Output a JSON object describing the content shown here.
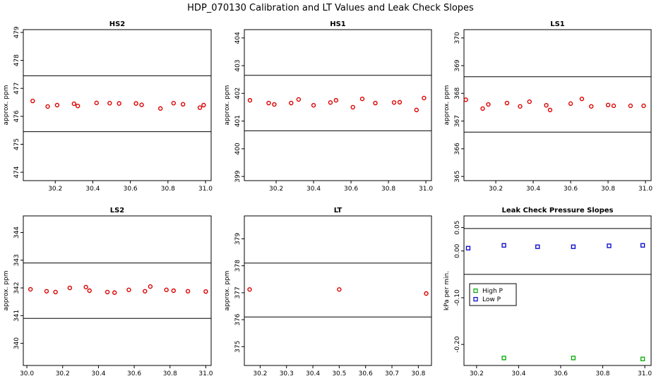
{
  "figure_title": "HDP_070130  Calibration and LT Values and Leak Check Slopes",
  "colors": {
    "points_red": "#dd0000",
    "high_p": "#00aa00",
    "low_p": "#0000cc",
    "axis": "#000000"
  },
  "chart_data": [
    {
      "id": "hs2",
      "type": "scatter",
      "title": "HS2",
      "ylabel": "approx. ppm",
      "xlim": [
        30.03,
        31.03
      ],
      "ylim": [
        473.7,
        479.1
      ],
      "xticks": [
        30.2,
        30.4,
        30.6,
        30.8,
        31.0
      ],
      "xtick_labels": [
        "30.2",
        "30.4",
        "30.6",
        "30.8",
        "31.0"
      ],
      "yticks": [
        474,
        475,
        476,
        477,
        478,
        479
      ],
      "ytick_labels": [
        "474",
        "475",
        "476",
        "477",
        "478",
        "479"
      ],
      "hlines": [
        475.45,
        477.45
      ],
      "series": [
        {
          "x": [
            30.08,
            30.16,
            30.21,
            30.3,
            30.32,
            30.42,
            30.49,
            30.54,
            30.63,
            30.66,
            30.76,
            30.83,
            30.88,
            30.97,
            30.99
          ],
          "y": [
            476.55,
            476.35,
            476.4,
            476.45,
            476.37,
            476.48,
            476.47,
            476.46,
            476.46,
            476.41,
            476.28,
            476.47,
            476.43,
            476.31,
            476.4
          ]
        }
      ]
    },
    {
      "id": "hs1",
      "type": "scatter",
      "title": "HS1",
      "ylabel": "approx. ppm",
      "xlim": [
        30.03,
        31.03
      ],
      "ylim": [
        398.85,
        404.3
      ],
      "xticks": [
        30.2,
        30.4,
        30.6,
        30.8,
        31.0
      ],
      "xtick_labels": [
        "30.2",
        "30.4",
        "30.6",
        "30.8",
        "31.0"
      ],
      "yticks": [
        399,
        400,
        401,
        402,
        403,
        404
      ],
      "ytick_labels": [
        "399",
        "400",
        "401",
        "402",
        "403",
        "404"
      ],
      "hlines": [
        400.65,
        402.65
      ],
      "series": [
        {
          "x": [
            30.06,
            30.16,
            30.19,
            30.28,
            30.32,
            30.4,
            30.49,
            30.52,
            30.61,
            30.66,
            30.73,
            30.83,
            30.86,
            30.95,
            30.99
          ],
          "y": [
            401.75,
            401.65,
            401.6,
            401.65,
            401.78,
            401.57,
            401.67,
            401.75,
            401.5,
            401.8,
            401.65,
            401.67,
            401.68,
            401.4,
            401.83
          ]
        }
      ]
    },
    {
      "id": "ls1",
      "type": "scatter",
      "title": "LS1",
      "ylabel": "approx. ppm",
      "xlim": [
        30.03,
        31.03
      ],
      "ylim": [
        364.85,
        370.3
      ],
      "xticks": [
        30.2,
        30.4,
        30.6,
        30.8,
        31.0
      ],
      "xtick_labels": [
        "30.2",
        "30.4",
        "30.6",
        "30.8",
        "31.0"
      ],
      "yticks": [
        365,
        366,
        367,
        368,
        369,
        370
      ],
      "ytick_labels": [
        "365",
        "366",
        "367",
        "368",
        "369",
        "370"
      ],
      "hlines": [
        366.6,
        368.6
      ],
      "series": [
        {
          "x": [
            30.04,
            30.13,
            30.16,
            30.26,
            30.33,
            30.38,
            30.47,
            30.49,
            30.6,
            30.66,
            30.71,
            30.8,
            30.83,
            30.92,
            30.99
          ],
          "y": [
            367.77,
            367.45,
            367.6,
            367.65,
            367.53,
            367.7,
            367.57,
            367.4,
            367.63,
            367.8,
            367.53,
            367.58,
            367.55,
            367.55,
            367.55
          ]
        }
      ]
    },
    {
      "id": "ls2",
      "type": "scatter",
      "title": "LS2",
      "ylabel": "approx. ppm",
      "xlim": [
        29.98,
        31.03
      ],
      "ylim": [
        339.2,
        344.6
      ],
      "xticks": [
        30.0,
        30.2,
        30.4,
        30.6,
        30.8,
        31.0
      ],
      "xtick_labels": [
        "30.0",
        "30.2",
        "30.4",
        "30.6",
        "30.8",
        "31.0"
      ],
      "yticks": [
        340,
        341,
        342,
        343,
        344
      ],
      "ytick_labels": [
        "340",
        "341",
        "342",
        "343",
        "344"
      ],
      "hlines": [
        340.9,
        342.9
      ],
      "series": [
        {
          "x": [
            30.02,
            30.11,
            30.16,
            30.24,
            30.33,
            30.35,
            30.45,
            30.49,
            30.57,
            30.66,
            30.69,
            30.78,
            30.82,
            30.9,
            31.0
          ],
          "y": [
            341.95,
            341.88,
            341.85,
            342.0,
            342.03,
            341.9,
            341.85,
            341.83,
            341.93,
            341.88,
            342.05,
            341.93,
            341.9,
            341.88,
            341.87
          ]
        }
      ]
    },
    {
      "id": "lt",
      "type": "scatter",
      "title": "LT",
      "ylabel": "approx. ppm",
      "xlim": [
        30.14,
        30.85
      ],
      "ylim": [
        374.3,
        379.85
      ],
      "xticks": [
        30.2,
        30.3,
        30.4,
        30.5,
        30.6,
        30.7,
        30.8
      ],
      "xtick_labels": [
        "30.2",
        "30.3",
        "30.4",
        "30.5",
        "30.6",
        "30.7",
        "30.8"
      ],
      "yticks": [
        375,
        376,
        377,
        378,
        379
      ],
      "ytick_labels": [
        "375",
        "376",
        "377",
        "378",
        "379"
      ],
      "hlines": [
        376.1,
        378.1
      ],
      "series": [
        {
          "x": [
            30.16,
            30.5,
            30.83
          ],
          "y": [
            377.12,
            377.12,
            376.97
          ]
        }
      ]
    },
    {
      "id": "leak",
      "type": "scatter",
      "title": "Leak Check Pressure Slopes",
      "ylabel": "kPa per min.",
      "xlim": [
        30.14,
        31.03
      ],
      "ylim": [
        -0.245,
        0.075
      ],
      "xticks": [
        30.2,
        30.4,
        30.6,
        30.8,
        31.0
      ],
      "xtick_labels": [
        "30.2",
        "30.4",
        "30.6",
        "30.8",
        "31.0"
      ],
      "yticks": [
        -0.2,
        -0.1,
        0.0,
        0.05
      ],
      "ytick_labels": [
        "-0.20",
        "-0.10",
        "0.00",
        "0.05"
      ],
      "hlines": [
        0.048,
        -0.05
      ],
      "legend": {
        "position": "center-left",
        "entries": [
          "High P",
          "Low P"
        ]
      },
      "series": [
        {
          "name": "High P",
          "color": "#00aa00",
          "x": [
            30.33,
            30.66,
            30.99
          ],
          "y": [
            -0.229,
            -0.229,
            -0.231
          ]
        },
        {
          "name": "Low P",
          "color": "#0000cc",
          "x": [
            30.16,
            30.33,
            30.49,
            30.66,
            30.83,
            30.99
          ],
          "y": [
            0.006,
            0.012,
            0.009,
            0.009,
            0.011,
            0.012
          ]
        }
      ]
    }
  ]
}
